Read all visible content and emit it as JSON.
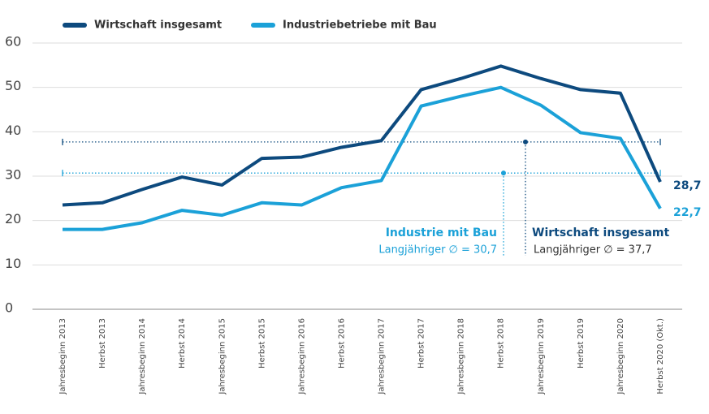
{
  "chart_data": {
    "type": "line",
    "categories": [
      "Jahresbeginn 2013",
      "Herbst 2013",
      "Jahresbeginn 2014",
      "Herbst 2014",
      "Jahresbeginn 2015",
      "Herbst 2015",
      "Jahresbeginn 2016",
      "Herbst 2016",
      "Jahresbeginn 2017",
      "Herbst 2017",
      "Jahresbeginn 2018",
      "Herbst 2018",
      "Jahresbeginn 2019",
      "Herbst 2019",
      "Jahresbeginn 2020",
      "Herbst 2020 (Okt.)"
    ],
    "series": [
      {
        "name": "Wirtschaft insgesamt",
        "color": "#0d4a7e",
        "values": [
          23.5,
          24,
          27,
          29.8,
          28,
          34,
          34.3,
          36.5,
          38,
          49.5,
          52,
          54.8,
          52,
          49.5,
          48.7,
          28.7
        ],
        "value_labels": [
          null,
          null,
          null,
          null,
          null,
          null,
          null,
          null,
          null,
          null,
          null,
          null,
          null,
          null,
          null,
          "28,7"
        ]
      },
      {
        "name": "Industriebetriebe mit Bau",
        "color": "#1ba1d8",
        "values": [
          18,
          18,
          19.5,
          22.3,
          21.2,
          24,
          23.5,
          27.4,
          29,
          45.8,
          48,
          50,
          46,
          39.8,
          38.5,
          22.7
        ],
        "value_labels": [
          null,
          null,
          null,
          null,
          null,
          null,
          null,
          null,
          null,
          null,
          null,
          null,
          null,
          null,
          null,
          "22,7"
        ]
      }
    ],
    "averages": [
      {
        "title": "Wirtschaft insgesamt",
        "value": 37.7,
        "label": "Langjähriger ∅ = 37,7",
        "color": "#0d4a7e"
      },
      {
        "title": "Industrie mit Bau",
        "value": 30.7,
        "label": "Langjähriger ∅  = 30,7",
        "color": "#1ba1d8"
      }
    ],
    "ylim": [
      0,
      60
    ],
    "yticks": [
      0,
      10,
      20,
      30,
      40,
      50,
      60
    ],
    "grid": true,
    "legend": "top-left"
  }
}
